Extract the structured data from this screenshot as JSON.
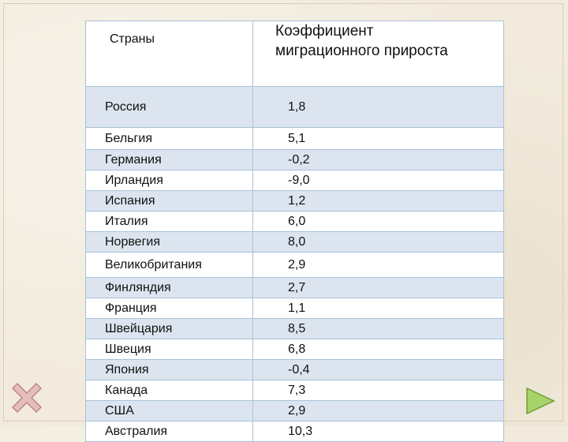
{
  "table": {
    "header": {
      "country": "Страны",
      "coefficient_line1": "Коэффициент",
      "coefficient_line2": "миграционного прироста"
    },
    "rows": [
      {
        "country": "Россия",
        "value": "1,8"
      },
      {
        "country": "Бельгия",
        "value": "5,1"
      },
      {
        "country": "Германия",
        "value": "-0,2"
      },
      {
        "country": "Ирландия",
        "value": "-9,0"
      },
      {
        "country": "Испания",
        "value": "1,2"
      },
      {
        "country": "Италия",
        "value": "6,0"
      },
      {
        "country": "Норвегия",
        "value": "8,0"
      },
      {
        "country": "Великобритания",
        "value": "2,9"
      },
      {
        "country": "Финляндия",
        "value": "2,7"
      },
      {
        "country": "Франция",
        "value": "1,1"
      },
      {
        "country": "Швейцария",
        "value": "8,5"
      },
      {
        "country": "Швеция",
        "value": "6,8"
      },
      {
        "country": "Япония",
        "value": "-0,4"
      },
      {
        "country": "Канада",
        "value": "7,3"
      },
      {
        "country": "США",
        "value": "2,9"
      },
      {
        "country": "Австралия",
        "value": "10,3"
      }
    ]
  },
  "navigation": {
    "close_icon": "close-x-icon",
    "next_icon": "play-triangle-icon",
    "close_color": "#d9a7a7",
    "next_color": "#9ccc5a"
  }
}
